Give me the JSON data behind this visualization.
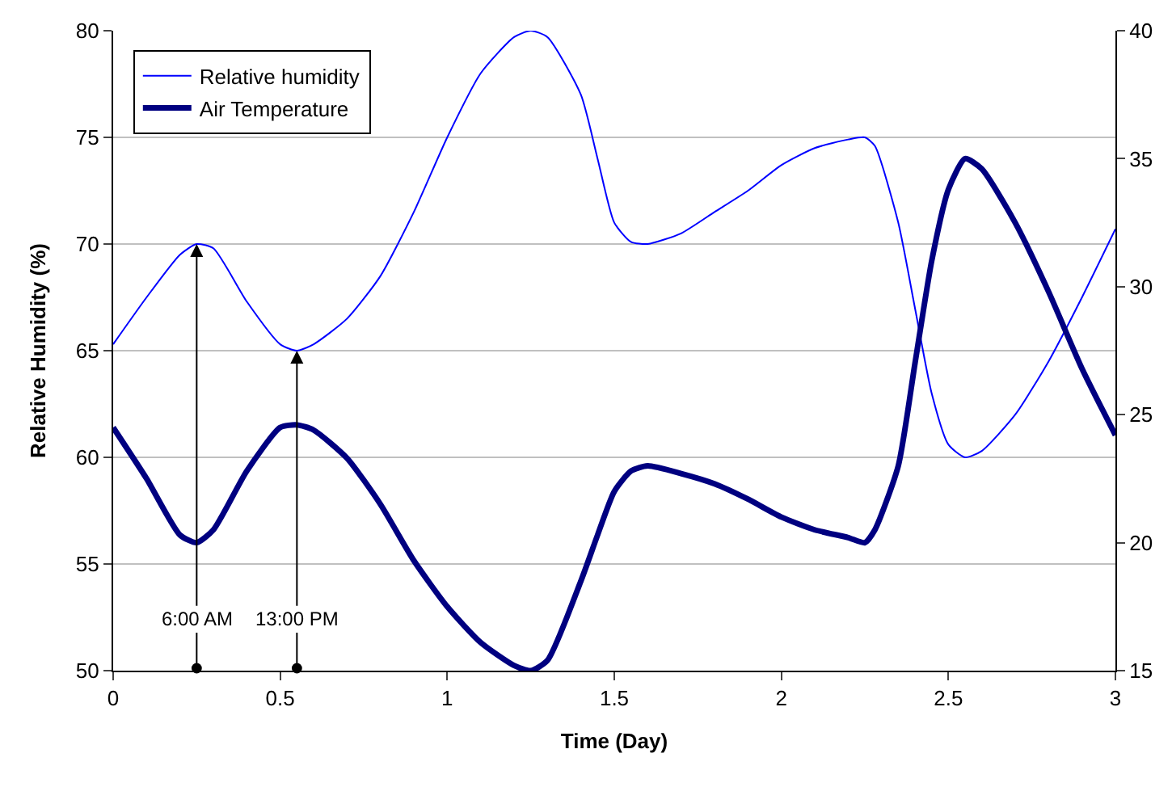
{
  "chart_data": {
    "type": "line",
    "xlabel": "Time (Day)",
    "ylabel": "Relative Humidity (%)",
    "x": [
      0,
      0.1,
      0.2,
      0.25,
      0.3,
      0.4,
      0.5,
      0.55,
      0.6,
      0.7,
      0.8,
      0.9,
      1.0,
      1.1,
      1.2,
      1.25,
      1.3,
      1.4,
      1.45,
      1.5,
      1.55,
      1.6,
      1.7,
      1.8,
      1.9,
      2.0,
      2.1,
      2.2,
      2.25,
      2.28,
      2.35,
      2.4,
      2.45,
      2.5,
      2.55,
      2.6,
      2.7,
      2.8,
      2.9,
      3.0
    ],
    "series": [
      {
        "name": "Relative humidity",
        "color": "#0000ff",
        "values": [
          65.3,
          67.5,
          69.5,
          70,
          69.8,
          67.3,
          65.3,
          65,
          65.3,
          66.5,
          68.5,
          71.5,
          75,
          78,
          79.7,
          80,
          79.7,
          77,
          74,
          71,
          70.1,
          70,
          70.5,
          71.5,
          72.5,
          73.7,
          74.5,
          74.9,
          75,
          74.6,
          71,
          67,
          63,
          60.6,
          60,
          60.3,
          62,
          64.5,
          67.5,
          70.7
        ]
      },
      {
        "name": "Air Temperature",
        "color": "#000080",
        "axis": "y2",
        "values": [
          24.5,
          22.5,
          20.3,
          20,
          20.5,
          22.8,
          24.5,
          24.6,
          24.4,
          23.3,
          21.5,
          19.3,
          17.5,
          16.1,
          15.2,
          15,
          15.4,
          18.5,
          20.3,
          22,
          22.8,
          23,
          22.7,
          22.3,
          21.7,
          21,
          20.5,
          20.2,
          20,
          20.5,
          23,
          27,
          31,
          33.8,
          35,
          34.6,
          32.5,
          29.8,
          26.8,
          24.2
        ]
      }
    ],
    "xlim": [
      0,
      3
    ],
    "xticks": [
      0,
      0.5,
      1,
      1.5,
      2,
      2.5,
      3
    ],
    "ylim": [
      50,
      80
    ],
    "yticks": [
      50,
      55,
      60,
      65,
      70,
      75,
      80
    ],
    "y2lim": [
      15,
      40
    ],
    "y2ticks": [
      15,
      20,
      25,
      30,
      35,
      40
    ],
    "annotations": [
      {
        "text": "6:00 AM",
        "x": 0.25,
        "y": 70
      },
      {
        "text": "13:00 PM",
        "x": 0.55,
        "y": 65
      }
    ],
    "grid": "y",
    "legend": "top left",
    "marker": "none",
    "line_style": "solid"
  }
}
